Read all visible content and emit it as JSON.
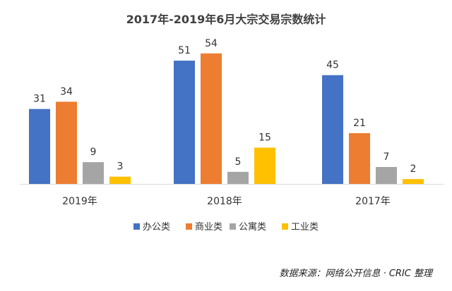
{
  "chart_data": {
    "type": "bar",
    "title": "2017年-2019年6月大宗交易宗数统计",
    "xlabel": "",
    "ylabel": "",
    "categories": [
      "2019年",
      "2018年",
      "2017年"
    ],
    "series": [
      {
        "name": "办公类",
        "color": "#4472C4",
        "values": [
          31,
          51,
          45
        ]
      },
      {
        "name": "商业类",
        "color": "#ED7D31",
        "values": [
          34,
          54,
          21
        ]
      },
      {
        "name": "公寓类",
        "color": "#A5A5A5",
        "values": [
          9,
          5,
          7
        ]
      },
      {
        "name": "工业类",
        "color": "#FFC000",
        "values": [
          3,
          15,
          2
        ]
      }
    ],
    "ylim": [
      0,
      60
    ],
    "grid": false,
    "legend": "bottom",
    "data_labels": true
  },
  "source": "数据来源：网络公开信息 · CRIC 整理"
}
